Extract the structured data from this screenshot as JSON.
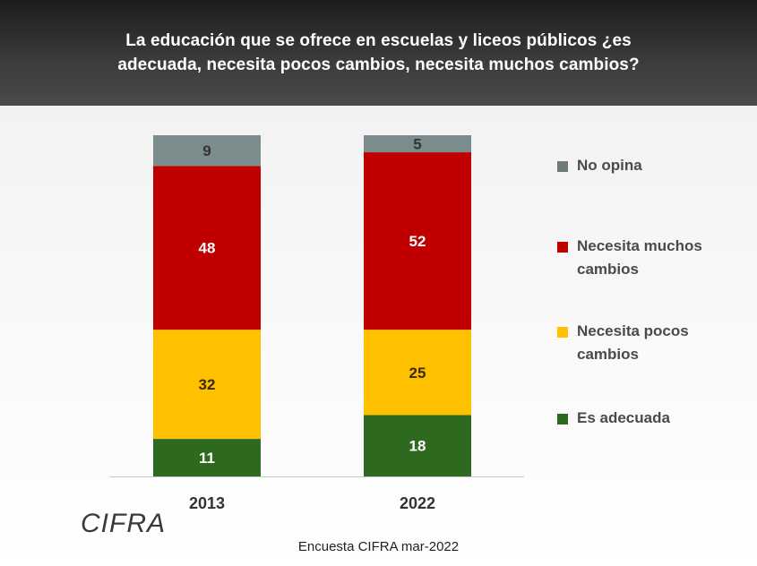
{
  "header": {
    "title": "La educación que se ofrece en escuelas y liceos públicos ¿es adecuada, necesita pocos cambios, necesita muchos cambios?"
  },
  "chart_data": {
    "type": "bar",
    "stacked": true,
    "categories": [
      "2013",
      "2022"
    ],
    "series": [
      {
        "name": "Es adecuada",
        "color": "#2d6a1f",
        "values": [
          11,
          18
        ]
      },
      {
        "name": "Necesita pocos cambios",
        "color": "#ffc000",
        "values": [
          32,
          25
        ]
      },
      {
        "name": "Necesita muchos cambios",
        "color": "#c00000",
        "values": [
          48,
          52
        ]
      },
      {
        "name": "No opina",
        "color": "#7b8c8c",
        "values": [
          9,
          5
        ]
      }
    ],
    "ylim": [
      0,
      100
    ],
    "legend": "right",
    "grid": false
  },
  "legend": {
    "items": [
      {
        "label": "No opina",
        "color": "#6f7b7b"
      },
      {
        "label": "Necesita muchos cambios",
        "color": "#c00000"
      },
      {
        "label": "Necesita pocos cambios",
        "color": "#ffc000"
      },
      {
        "label": "Es adecuada",
        "color": "#2d6a1f"
      }
    ]
  },
  "logo": {
    "text": "CIFRA"
  },
  "footer": {
    "source": "Encuesta CIFRA  mar-2022"
  }
}
